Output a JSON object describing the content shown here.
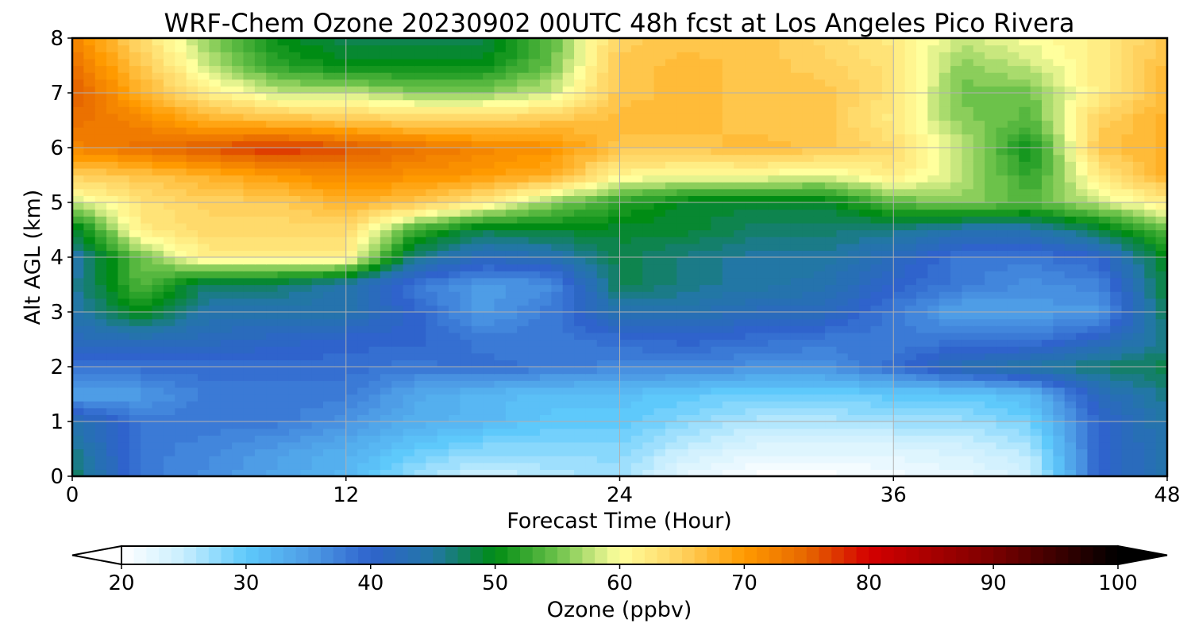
{
  "chart_data": {
    "type": "heatmap",
    "title": "WRF-Chem Ozone  20230902 00UTC 48h fcst at Los Angeles Pico Rivera",
    "xlabel": "Forecast Time (Hour)",
    "ylabel": "Alt AGL (km)",
    "x_ticks": [
      0,
      12,
      24,
      36,
      48
    ],
    "y_ticks": [
      0,
      1,
      2,
      3,
      4,
      5,
      6,
      7,
      8
    ],
    "xlim": [
      0,
      48
    ],
    "ylim": [
      0,
      8
    ],
    "grid": true,
    "x": [
      0,
      3,
      6,
      9,
      12,
      15,
      18,
      21,
      24,
      27,
      30,
      33,
      36,
      39,
      42,
      45,
      48
    ],
    "y": [
      0,
      0.5,
      1,
      1.5,
      2,
      2.5,
      3,
      3.5,
      4,
      4.5,
      5,
      5.5,
      6,
      6.5,
      7,
      7.5,
      8
    ],
    "z": [
      [
        48,
        38,
        36,
        34,
        32,
        27,
        24,
        26,
        27,
        22,
        20,
        20,
        21,
        22,
        24,
        40,
        44
      ],
      [
        46,
        38,
        37,
        35,
        33,
        30,
        28,
        28,
        28,
        25,
        23,
        23,
        23,
        24,
        26,
        40,
        44
      ],
      [
        44,
        38,
        38,
        38,
        36,
        33,
        32,
        30,
        30,
        28,
        26,
        26,
        27,
        27,
        29,
        40,
        45
      ],
      [
        34,
        35,
        38,
        38,
        38,
        34,
        32,
        31,
        31,
        30,
        29,
        29,
        30,
        30,
        32,
        42,
        46
      ],
      [
        38,
        39,
        39,
        39,
        39,
        38,
        39,
        38,
        37,
        37,
        36,
        36,
        39,
        43,
        45,
        47,
        48
      ],
      [
        42,
        43,
        42,
        41,
        40,
        40,
        38,
        38,
        39,
        40,
        39,
        38,
        38,
        38,
        38,
        41,
        46
      ],
      [
        44,
        50,
        44,
        44,
        44,
        40,
        35,
        38,
        44,
        44,
        42,
        42,
        38,
        34,
        35,
        35,
        48
      ],
      [
        45,
        54,
        47,
        47,
        44,
        38,
        35,
        36,
        48,
        46,
        45,
        44,
        40,
        38,
        36,
        37,
        49
      ],
      [
        44,
        55,
        62,
        62,
        62,
        46,
        42,
        43,
        48,
        46,
        45,
        45,
        42,
        38,
        38,
        40,
        50
      ],
      [
        48,
        62,
        64,
        64,
        64,
        53,
        48,
        49,
        49,
        49,
        47,
        47,
        46,
        44,
        44,
        48,
        54
      ],
      [
        58,
        63,
        65,
        65,
        68,
        66,
        62,
        56,
        52,
        49,
        49,
        49,
        54,
        56,
        54,
        58,
        62
      ],
      [
        65,
        66,
        68,
        70,
        72,
        71,
        70,
        68,
        61,
        60,
        60,
        59,
        62,
        58,
        52,
        62,
        68
      ],
      [
        72,
        74,
        76,
        78,
        76,
        74,
        72,
        71,
        66,
        66,
        67,
        66,
        64,
        58,
        50,
        66,
        68
      ],
      [
        74,
        72,
        68,
        67,
        66,
        65,
        65,
        66,
        67,
        67,
        66,
        66,
        62,
        56,
        54,
        65,
        68
      ],
      [
        76,
        68,
        62,
        58,
        58,
        56,
        56,
        58,
        66,
        67,
        66,
        66,
        63,
        55,
        55,
        62,
        67
      ],
      [
        74,
        66,
        58,
        52,
        50,
        50,
        50,
        55,
        66,
        67,
        66,
        65,
        63,
        56,
        58,
        62,
        67
      ],
      [
        72,
        64,
        56,
        50,
        48,
        48,
        48,
        54,
        65,
        66,
        66,
        64,
        62,
        58,
        60,
        62,
        66
      ]
    ],
    "colorbar": {
      "label": "Ozone  (ppbv)",
      "ticks": [
        20,
        30,
        40,
        50,
        60,
        70,
        80,
        90,
        100
      ],
      "min": 20,
      "max": 100,
      "extend": "both",
      "stops": [
        [
          20,
          "#ffffff"
        ],
        [
          25,
          "#c8eefe"
        ],
        [
          30,
          "#5ec9fb"
        ],
        [
          35,
          "#4e9de6"
        ],
        [
          40,
          "#2f63cc"
        ],
        [
          45,
          "#2277a5"
        ],
        [
          50,
          "#008c14"
        ],
        [
          55,
          "#6cc24a"
        ],
        [
          58,
          "#c8e77e"
        ],
        [
          60,
          "#ffff9d"
        ],
        [
          65,
          "#ffd15e"
        ],
        [
          70,
          "#ff9a00"
        ],
        [
          75,
          "#e66700"
        ],
        [
          80,
          "#d40000"
        ],
        [
          90,
          "#7a0000"
        ],
        [
          100,
          "#000000"
        ]
      ]
    }
  }
}
